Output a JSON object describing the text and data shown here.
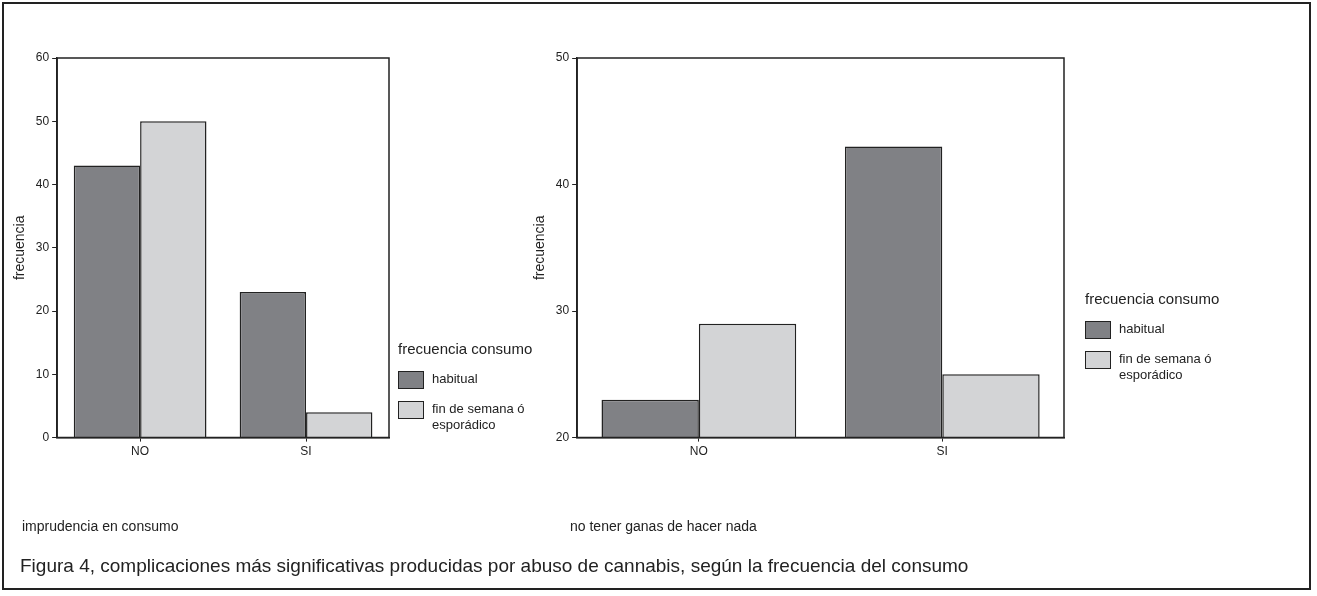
{
  "chart_data": [
    {
      "type": "bar",
      "xlabel": "imprudencia en consumo",
      "ylabel": "frecuencia",
      "legend_title": "frecuencia consumo",
      "categories": [
        "NO",
        "SI"
      ],
      "series": [
        {
          "name": "habitual",
          "color": "#808185",
          "values": [
            43,
            23
          ]
        },
        {
          "name": "fin de semana ó esporádico",
          "color": "#d3d4d6",
          "values": [
            50,
            4
          ]
        }
      ],
      "ylim": [
        0,
        60
      ],
      "yticks": [
        0,
        10,
        20,
        30,
        40,
        50,
        60
      ],
      "grid": false,
      "legend": "right",
      "annotations": [
        "Figura 4, complicaciones más significativas producidas por abuso de cannabis, según la frecuencia del consumo"
      ]
    },
    {
      "type": "bar",
      "xlabel": "no tener ganas de hacer nada",
      "ylabel": "frecuencia",
      "legend_title": "frecuencia consumo",
      "categories": [
        "NO",
        "SI"
      ],
      "series": [
        {
          "name": "habitual",
          "color": "#808185",
          "values": [
            23,
            43
          ]
        },
        {
          "name": "fin de semana ó esporádico",
          "color": "#d3d4d6",
          "values": [
            29,
            25
          ]
        }
      ],
      "ylim": [
        20,
        50
      ],
      "yticks": [
        20,
        30,
        40,
        50
      ],
      "grid": false,
      "legend": "right"
    }
  ]
}
